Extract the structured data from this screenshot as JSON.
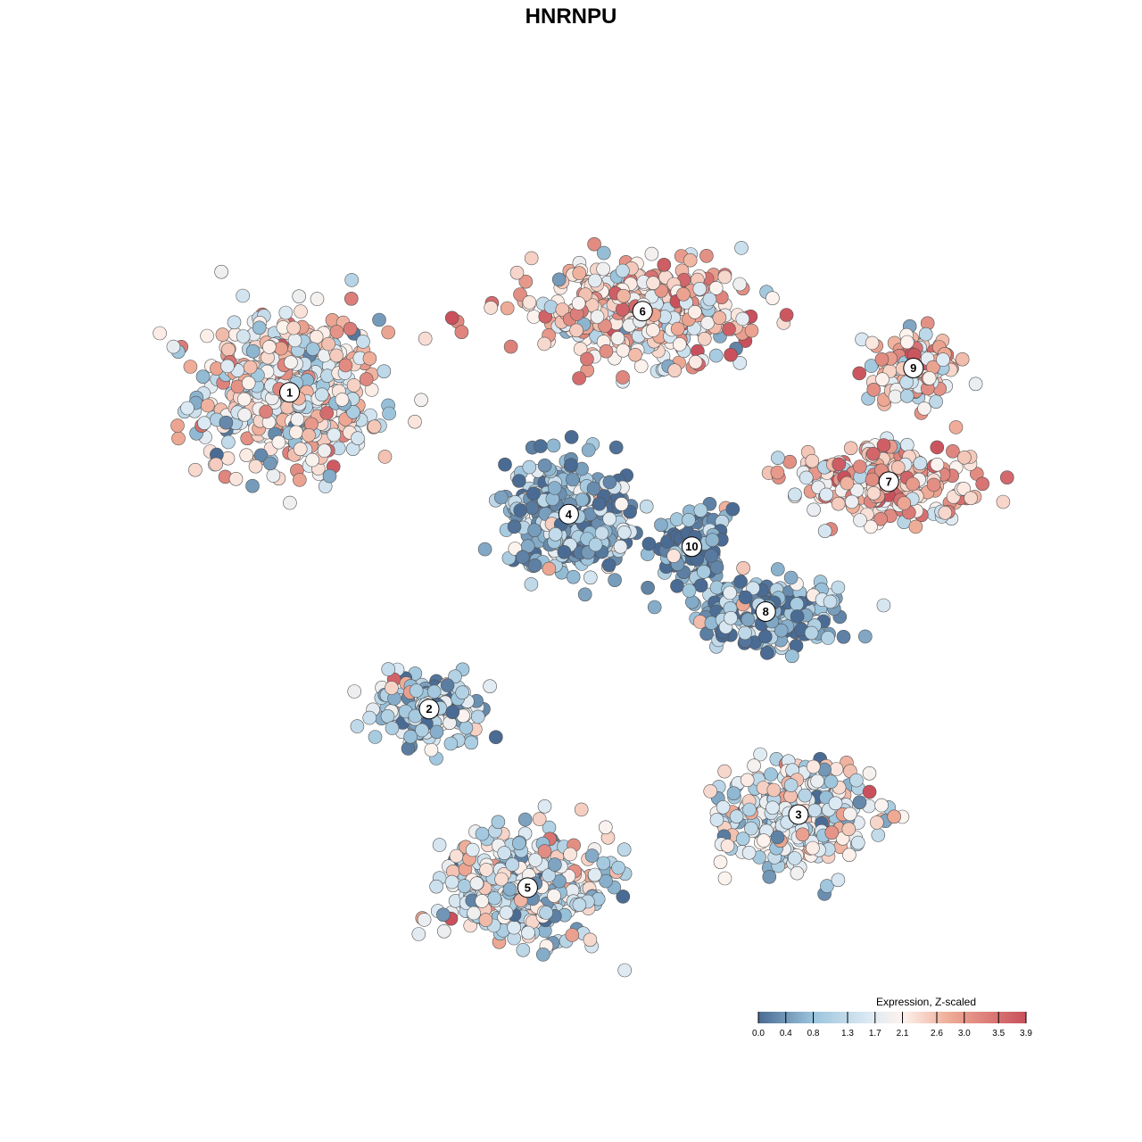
{
  "chart_data": {
    "type": "scatter",
    "title": "HNRNPU",
    "xlabel": "",
    "ylabel": "",
    "grid": false,
    "legend": {
      "title": "Expression, Z-scaled",
      "placement": "bottom-right",
      "ticks": [
        0.0,
        0.4,
        0.8,
        1.3,
        1.7,
        2.1,
        2.6,
        3.0,
        3.5,
        3.9
      ],
      "tick_labels": [
        "0.0",
        "0.4",
        "0.8",
        "1.3",
        "1.7",
        "2.1",
        "2.6",
        "3.0",
        "3.5",
        "3.9"
      ],
      "range": [
        0.0,
        3.9
      ]
    },
    "colorscale": {
      "stops": [
        0.0,
        0.8,
        1.6,
        2.1,
        2.8,
        3.9
      ],
      "colors": [
        "#4a6b93",
        "#9bc4dc",
        "#dbe9f3",
        "#fdf3ee",
        "#eeaa95",
        "#c9505c"
      ]
    },
    "xlim": [
      -50,
      50
    ],
    "ylim": [
      -50,
      50
    ],
    "clusters": [
      {
        "id": "1",
        "x": -37,
        "y": 22,
        "spread_x": 10.0,
        "spread_y": 9.0,
        "mean_expr": 2.0,
        "n": 520
      },
      {
        "id": "2",
        "x": -20,
        "y": -17,
        "spread_x": 6.5,
        "spread_y": 4.0,
        "mean_expr": 1.1,
        "n": 180
      },
      {
        "id": "3",
        "x": 25,
        "y": -30,
        "spread_x": 8.0,
        "spread_y": 6.0,
        "mean_expr": 1.7,
        "n": 330
      },
      {
        "id": "4",
        "x": -3,
        "y": 7,
        "spread_x": 7.0,
        "spread_y": 6.0,
        "mean_expr": 0.7,
        "n": 380
      },
      {
        "id": "5",
        "x": -8,
        "y": -39,
        "spread_x": 9.0,
        "spread_y": 6.0,
        "mean_expr": 1.5,
        "n": 420
      },
      {
        "id": "6",
        "x": 6,
        "y": 32,
        "spread_x": 12.0,
        "spread_y": 5.0,
        "mean_expr": 2.3,
        "n": 420
      },
      {
        "id": "7",
        "x": 36,
        "y": 11,
        "spread_x": 10.0,
        "spread_y": 4.0,
        "mean_expr": 2.5,
        "n": 260
      },
      {
        "id": "8",
        "x": 21,
        "y": -5,
        "spread_x": 8.0,
        "spread_y": 4.0,
        "mean_expr": 0.6,
        "n": 220
      },
      {
        "id": "9",
        "x": 39,
        "y": 25,
        "spread_x": 4.5,
        "spread_y": 4.0,
        "mean_expr": 2.4,
        "n": 140
      },
      {
        "id": "10",
        "x": 12,
        "y": 3,
        "spread_x": 3.5,
        "spread_y": 4.5,
        "mean_expr": 0.5,
        "n": 130
      }
    ]
  }
}
